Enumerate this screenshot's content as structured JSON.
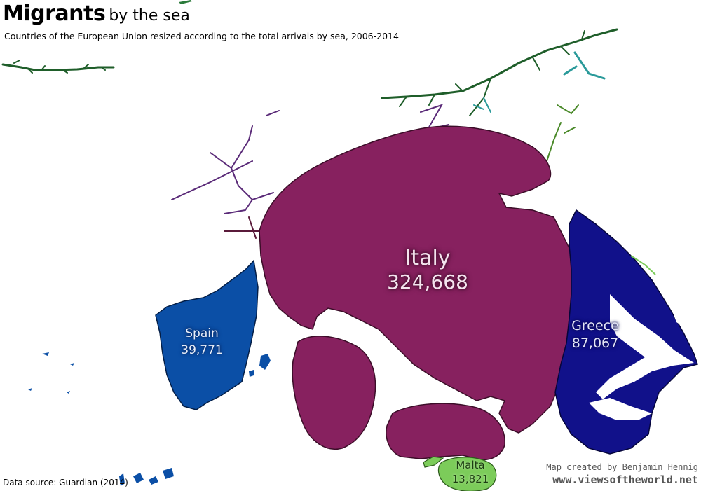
{
  "title": {
    "main": "Migrants",
    "rest": "by the sea"
  },
  "subtitle": "Countries of the European Union resized according to the total arrivals by sea, 2006-2014",
  "source": "Data source: Guardian (2014)",
  "credit": {
    "line1": "Map created by Benjamin Hennig",
    "line2": "www.viewsoftheworld.net"
  },
  "regions": [
    {
      "id": "italy",
      "name": "Italy",
      "value": "324,668",
      "color": "#87215f"
    },
    {
      "id": "greece",
      "name": "Greece",
      "value": "87,067",
      "color": "#11118a"
    },
    {
      "id": "spain",
      "name": "Spain",
      "value": "39,771",
      "color": "#0b4fa6"
    },
    {
      "id": "malta",
      "name": "Malta",
      "value": "13,821",
      "color": "#7ccc5a"
    }
  ],
  "colors": {
    "background": "#ffffff",
    "other_countries": [
      "#1f5e2a",
      "#2a9a9a",
      "#5a2a78",
      "#c8d820"
    ]
  }
}
